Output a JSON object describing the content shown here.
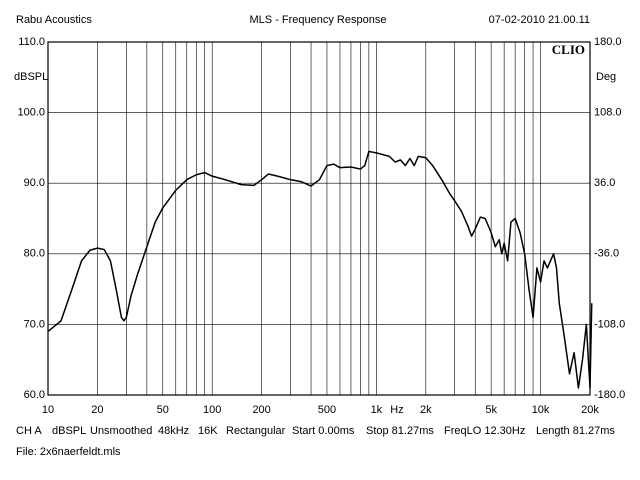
{
  "header": {
    "left": "Rabu Acoustics",
    "center": "MLS - Frequency Response",
    "right": "07-02-2010 21.00.11"
  },
  "chart_data": {
    "type": "line",
    "y_label": "dBSPL",
    "y2_label": "Deg",
    "x_label": "Hz",
    "annotation": "CLIO",
    "xlog": true,
    "grid": true,
    "xlim": [
      10,
      20000
    ],
    "xticks": [
      10,
      20,
      50,
      100,
      200,
      500,
      {
        "value": 1000,
        "label": "1k"
      },
      {
        "value": 2000,
        "label": "2k"
      },
      {
        "value": 5000,
        "label": "5k"
      },
      {
        "value": 10000,
        "label": "10k"
      },
      {
        "value": 20000,
        "label": "20k"
      }
    ],
    "xminor": [
      30,
      40,
      60,
      70,
      80,
      90,
      300,
      400,
      600,
      700,
      800,
      900,
      3000,
      4000,
      6000,
      7000,
      8000,
      9000
    ],
    "ylim": [
      60,
      110
    ],
    "yticks": [
      {
        "value": 60,
        "label": "60.0"
      },
      {
        "value": 70,
        "label": "70.0"
      },
      {
        "value": 80,
        "label": "80.0"
      },
      {
        "value": 90,
        "label": "90.0"
      },
      {
        "value": 100,
        "label": "100.0"
      },
      {
        "value": 110,
        "label": "110.0"
      }
    ],
    "y2lim": [
      -180,
      180
    ],
    "y2ticks": [
      {
        "value": -180,
        "label": "-180.0"
      },
      {
        "value": -108,
        "label": "-108.0"
      },
      {
        "value": -36,
        "label": "-36.0"
      },
      {
        "value": 36,
        "label": "36.0"
      },
      {
        "value": 108,
        "label": "108.0"
      },
      {
        "value": 180,
        "label": "180.0"
      }
    ],
    "x": [
      10,
      12,
      14,
      16,
      18,
      20,
      22,
      24,
      26,
      28,
      29,
      30,
      32,
      35,
      40,
      45,
      50,
      60,
      70,
      80,
      90,
      100,
      120,
      150,
      180,
      200,
      220,
      250,
      300,
      350,
      400,
      450,
      500,
      550,
      600,
      700,
      800,
      850,
      900,
      1000,
      1200,
      1300,
      1400,
      1500,
      1600,
      1700,
      1800,
      2000,
      2200,
      2500,
      2800,
      3000,
      3300,
      3600,
      3800,
      4000,
      4300,
      4600,
      5000,
      5300,
      5600,
      5800,
      6000,
      6300,
      6600,
      7000,
      7500,
      8000,
      8500,
      9000,
      9500,
      10000,
      10500,
      11000,
      12000,
      12500,
      13000,
      14000,
      15000,
      16000,
      17000,
      18000,
      19000,
      20000,
      20500
    ],
    "series": [
      {
        "name": "CH A",
        "color": "#000000",
        "values": [
          69,
          70.5,
          75,
          79,
          80.5,
          80.8,
          80.6,
          79,
          75,
          71,
          70.5,
          71,
          74,
          77,
          81,
          84.5,
          86.5,
          89,
          90.5,
          91.2,
          91.5,
          91,
          90.5,
          89.8,
          89.7,
          90.5,
          91.3,
          91,
          90.5,
          90.2,
          89.6,
          90.5,
          92.5,
          92.7,
          92.2,
          92.3,
          92,
          92.5,
          94.5,
          94.3,
          93.8,
          93,
          93.3,
          92.5,
          93.5,
          92.5,
          93.8,
          93.6,
          92.5,
          90.5,
          88.5,
          87.5,
          86,
          84,
          82.5,
          83.5,
          85.2,
          85,
          83,
          81,
          82,
          80,
          81.5,
          79,
          84.5,
          85,
          83,
          80,
          75,
          71,
          78,
          76,
          79,
          78,
          80,
          78,
          73,
          68,
          63,
          66,
          61,
          65,
          70,
          61,
          73
        ]
      }
    ]
  },
  "footer": {
    "items": [
      "CH A",
      "dBSPL",
      "Unsmoothed",
      "48kHz",
      "16K",
      "Rectangular",
      "Start 0.00ms",
      "Stop 81.27ms",
      "FreqLO 12.30Hz",
      "Length 81.27ms"
    ],
    "file": "File: 2x6naerfeldt.mls"
  }
}
